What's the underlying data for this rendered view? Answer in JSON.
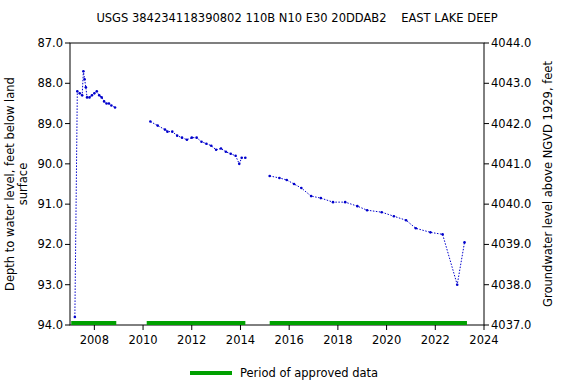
{
  "chart_data": {
    "type": "line",
    "title": "USGS 384234118390802 110B N10 E30 20DDAB2    EAST LAKE DEEP",
    "ylabel": [
      "Depth to water level, feet below land",
      "surface"
    ],
    "y2label": "Groundwater level above NGVD 1929, feet",
    "xlim": [
      2007.0,
      2024.0
    ],
    "xticks": [
      2008,
      2010,
      2012,
      2014,
      2016,
      2018,
      2020,
      2022,
      2024
    ],
    "ylim": [
      87.0,
      94.0
    ],
    "yticks": [
      {
        "value": 87,
        "label": "87.0"
      },
      {
        "value": 88,
        "label": "88.0"
      },
      {
        "value": 89,
        "label": "89.0"
      },
      {
        "value": 90,
        "label": "90.0"
      },
      {
        "value": 91,
        "label": "91.0"
      },
      {
        "value": 92,
        "label": "92.0"
      },
      {
        "value": 93,
        "label": "93.0"
      },
      {
        "value": 94,
        "label": "94.0"
      }
    ],
    "y2lim": [
      4044.0,
      4037.0
    ],
    "y2ticks": [
      {
        "value": 4044,
        "label": "4044.0"
      },
      {
        "value": 4043,
        "label": "4043.0"
      },
      {
        "value": 4042,
        "label": "4042.0"
      },
      {
        "value": 4041,
        "label": "4041.0"
      },
      {
        "value": 4040,
        "label": "4040.0"
      },
      {
        "value": 4039,
        "label": "4039.0"
      },
      {
        "value": 4038,
        "label": "4038.0"
      },
      {
        "value": 4037,
        "label": "4037.0"
      }
    ],
    "grid": false,
    "series": [
      {
        "color": "#0000cc",
        "marker": "dot",
        "line_style": "dotted",
        "x": [
          2007.2,
          2007.3,
          2007.4,
          2007.5,
          2007.55,
          2007.6,
          2007.65,
          2007.7,
          2007.8,
          2007.9,
          2008.0,
          2008.1,
          2008.2,
          2008.3,
          2008.4,
          2008.5,
          2008.6,
          2008.7,
          2008.85,
          2009.6,
          2010.3,
          2010.6,
          2010.9,
          2011.0,
          2011.2,
          2011.4,
          2011.6,
          2011.8,
          2012.0,
          2012.2,
          2012.4,
          2012.6,
          2012.8,
          2013.0,
          2013.2,
          2013.4,
          2013.6,
          2013.8,
          2013.95,
          2014.05,
          2014.2,
          2014.7,
          2015.2,
          2015.6,
          2015.9,
          2016.2,
          2016.5,
          2016.9,
          2017.3,
          2017.8,
          2018.3,
          2018.8,
          2019.2,
          2019.8,
          2020.3,
          2020.8,
          2021.2,
          2021.8,
          2022.3,
          2022.9,
          2023.2
        ],
        "values": [
          93.8,
          88.2,
          88.25,
          88.3,
          87.7,
          87.9,
          88.1,
          88.35,
          88.35,
          88.3,
          88.25,
          88.2,
          88.3,
          88.35,
          88.45,
          88.5,
          88.5,
          88.55,
          88.6,
          null,
          88.95,
          89.05,
          89.15,
          89.2,
          89.2,
          89.3,
          89.35,
          89.4,
          89.35,
          89.35,
          89.45,
          89.5,
          89.55,
          89.65,
          89.62,
          89.7,
          89.75,
          89.8,
          90.0,
          89.85,
          89.85,
          null,
          90.3,
          90.35,
          90.4,
          90.5,
          90.6,
          90.8,
          90.85,
          90.95,
          90.95,
          91.05,
          91.15,
          91.2,
          91.3,
          91.4,
          91.6,
          91.7,
          91.75,
          93.0,
          91.95
        ]
      }
    ],
    "approved_periods": {
      "name": "Period of approved data",
      "color": "#00a000",
      "ranges": [
        [
          2007.05,
          2008.9
        ],
        [
          2010.15,
          2014.2
        ],
        [
          2015.2,
          2023.3
        ]
      ]
    },
    "legend": "bottom"
  }
}
